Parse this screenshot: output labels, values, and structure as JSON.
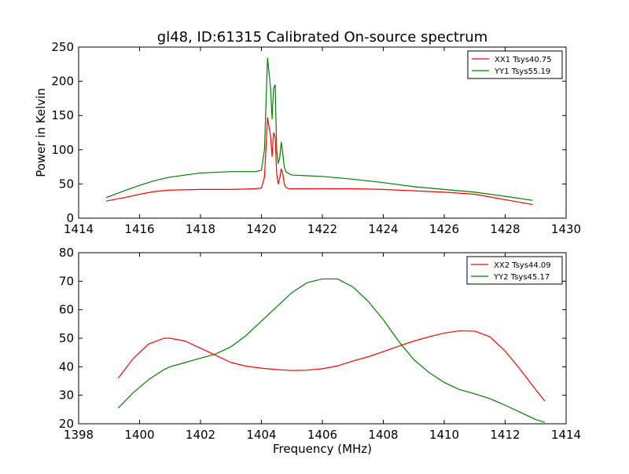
{
  "figure": {
    "title": "gl48, ID:61315 Calibrated On-source spectrum",
    "xlabel": "Frequency (MHz)",
    "ylabel": "Power in Kelvin"
  },
  "chart_data": [
    {
      "type": "line",
      "title": "gl48, ID:61315 Calibrated On-source spectrum",
      "xlabel": "",
      "ylabel": "Power in Kelvin",
      "xlim": [
        1414,
        1430
      ],
      "ylim": [
        0,
        250
      ],
      "xticks": [
        1414,
        1416,
        1418,
        1420,
        1422,
        1424,
        1426,
        1428,
        1430
      ],
      "yticks": [
        0,
        50,
        100,
        150,
        200,
        250
      ],
      "grid": false,
      "legend_position": "top-right",
      "series": [
        {
          "name": "XX1 Tsys40.75",
          "color": "#ff0000",
          "x": [
            1414.9,
            1415.5,
            1416.0,
            1416.5,
            1417.0,
            1418.0,
            1419.0,
            1419.8,
            1420.0,
            1420.1,
            1420.2,
            1420.3,
            1420.35,
            1420.4,
            1420.45,
            1420.5,
            1420.55,
            1420.6,
            1420.65,
            1420.7,
            1420.75,
            1420.8,
            1420.9,
            1421.0,
            1422.0,
            1423.0,
            1424.0,
            1425.0,
            1426.0,
            1427.0,
            1428.0,
            1428.9
          ],
          "y": [
            25,
            30,
            35,
            39,
            41,
            42,
            42,
            43,
            44,
            60,
            147,
            120,
            90,
            125,
            118,
            65,
            50,
            58,
            72,
            65,
            50,
            45,
            43,
            43,
            43,
            43,
            42,
            40,
            38,
            35,
            27,
            20
          ]
        },
        {
          "name": "YY1 Tsys55.19",
          "color": "#008000",
          "x": [
            1414.9,
            1415.5,
            1416.0,
            1416.5,
            1417.0,
            1418.0,
            1419.0,
            1419.8,
            1420.0,
            1420.1,
            1420.2,
            1420.3,
            1420.35,
            1420.4,
            1420.45,
            1420.5,
            1420.55,
            1420.6,
            1420.65,
            1420.7,
            1420.75,
            1420.8,
            1420.9,
            1421.0,
            1422.0,
            1423.0,
            1424.0,
            1425.0,
            1426.0,
            1427.0,
            1428.0,
            1428.9
          ],
          "y": [
            30,
            40,
            48,
            55,
            60,
            66,
            68,
            68,
            70,
            100,
            234,
            190,
            145,
            190,
            195,
            100,
            80,
            88,
            111,
            95,
            75,
            68,
            65,
            63,
            61,
            57,
            52,
            46,
            42,
            38,
            32,
            26
          ]
        }
      ]
    },
    {
      "type": "line",
      "title": "",
      "xlabel": "Frequency (MHz)",
      "ylabel": "",
      "xlim": [
        1398,
        1414
      ],
      "ylim": [
        20,
        80
      ],
      "xticks": [
        1398,
        1400,
        1402,
        1404,
        1406,
        1408,
        1410,
        1412,
        1414
      ],
      "yticks": [
        20,
        30,
        40,
        50,
        60,
        70,
        80
      ],
      "grid": false,
      "legend_position": "top-right",
      "series": [
        {
          "name": "XX2 Tsys44.09",
          "color": "#ff0000",
          "x": [
            1399.3,
            1399.8,
            1400.3,
            1400.8,
            1401.0,
            1401.5,
            1402.0,
            1402.5,
            1403.0,
            1403.5,
            1404.0,
            1404.5,
            1405.0,
            1405.5,
            1406.0,
            1406.5,
            1407.0,
            1407.5,
            1408.0,
            1408.5,
            1409.0,
            1409.5,
            1410.0,
            1410.5,
            1411.0,
            1411.5,
            1412.0,
            1412.5,
            1413.0,
            1413.3
          ],
          "y": [
            36,
            43,
            48,
            50,
            50,
            49,
            46.5,
            44,
            41.5,
            40.2,
            39.5,
            39,
            38.7,
            38.8,
            39.3,
            40.3,
            42,
            43.5,
            45.3,
            47.2,
            49,
            50.5,
            51.8,
            52.6,
            52.5,
            50.5,
            45.5,
            39,
            32,
            28
          ]
        },
        {
          "name": "YY2 Tsys45.17",
          "color": "#008000",
          "x": [
            1399.3,
            1399.8,
            1400.3,
            1400.8,
            1401.0,
            1401.5,
            1402.0,
            1402.5,
            1403.0,
            1403.5,
            1404.0,
            1404.5,
            1405.0,
            1405.5,
            1406.0,
            1406.5,
            1407.0,
            1407.5,
            1408.0,
            1408.5,
            1409.0,
            1409.5,
            1410.0,
            1410.5,
            1411.0,
            1411.5,
            1412.0,
            1412.5,
            1413.0,
            1413.3
          ],
          "y": [
            25.5,
            31,
            35.5,
            39,
            40,
            41.5,
            43,
            44.5,
            47,
            51,
            56,
            61,
            66,
            69.5,
            70.8,
            70.8,
            68,
            63,
            56.5,
            49,
            42.5,
            38,
            34.5,
            32,
            30.5,
            28.8,
            26.5,
            24,
            21.5,
            20.5
          ]
        }
      ]
    }
  ]
}
